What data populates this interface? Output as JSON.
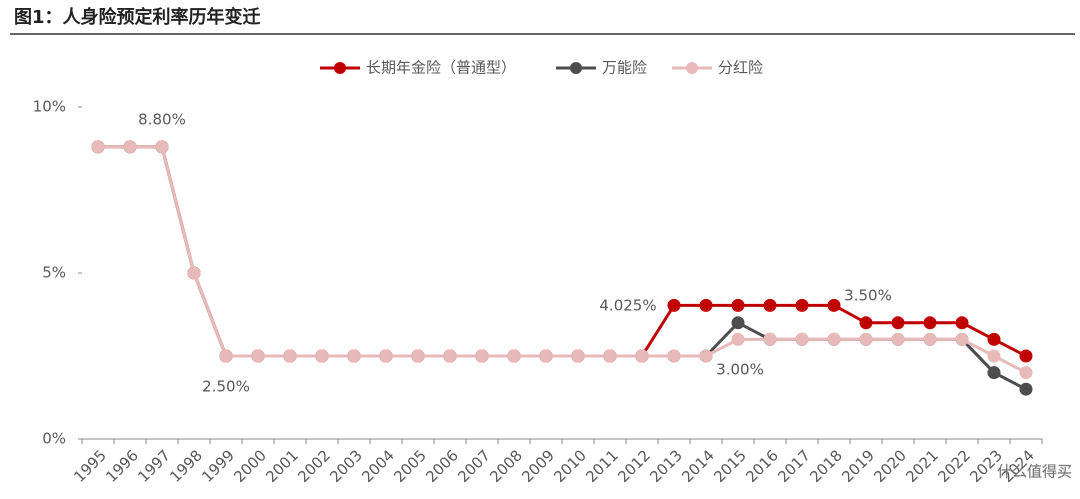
{
  "chart_data": {
    "type": "line",
    "title": "图1：人身险预定利率历年变迁",
    "categories": [
      "1995",
      "1996",
      "1997",
      "1998",
      "1999",
      "2000",
      "2001",
      "2002",
      "2003",
      "2004",
      "2005",
      "2006",
      "2007",
      "2008",
      "2009",
      "2010",
      "2011",
      "2012",
      "2013",
      "2014",
      "2015",
      "2016",
      "2017",
      "2018",
      "2019",
      "2020",
      "2021",
      "2022",
      "2023",
      "2024"
    ],
    "series": [
      {
        "name": "长期年金险（普通型）",
        "color": "#c00000",
        "values": [
          8.8,
          8.8,
          8.8,
          5,
          2.5,
          2.5,
          2.5,
          2.5,
          2.5,
          2.5,
          2.5,
          2.5,
          2.5,
          2.5,
          2.5,
          2.5,
          2.5,
          2.5,
          4.025,
          4.025,
          4.025,
          4.025,
          4.025,
          4.025,
          3.5,
          3.5,
          3.5,
          3.5,
          3.0,
          2.5
        ]
      },
      {
        "name": "万能险",
        "color": "#4d4d4d",
        "values": [
          8.8,
          8.8,
          8.8,
          5,
          2.5,
          2.5,
          2.5,
          2.5,
          2.5,
          2.5,
          2.5,
          2.5,
          2.5,
          2.5,
          2.5,
          2.5,
          2.5,
          2.5,
          2.5,
          2.5,
          3.5,
          3.0,
          3.0,
          3.0,
          3.0,
          3.0,
          3.0,
          3.0,
          2.0,
          1.5
        ]
      },
      {
        "name": "分红险",
        "color": "#e8b9b9",
        "values": [
          8.8,
          8.8,
          8.8,
          5,
          2.5,
          2.5,
          2.5,
          2.5,
          2.5,
          2.5,
          2.5,
          2.5,
          2.5,
          2.5,
          2.5,
          2.5,
          2.5,
          2.5,
          2.5,
          2.5,
          3.0,
          3.0,
          3.0,
          3.0,
          3.0,
          3.0,
          3.0,
          3.0,
          2.5,
          2.0
        ]
      }
    ],
    "ylim": [
      0,
      10
    ],
    "yticks": [
      {
        "value": 0,
        "label": "0%"
      },
      {
        "value": 5,
        "label": "5%"
      },
      {
        "value": 10,
        "label": "10%"
      }
    ],
    "annotations": [
      "8.80%",
      "2.50%",
      "4.025%",
      "3.50%",
      "3.00%"
    ],
    "watermark": "什么值得买"
  }
}
